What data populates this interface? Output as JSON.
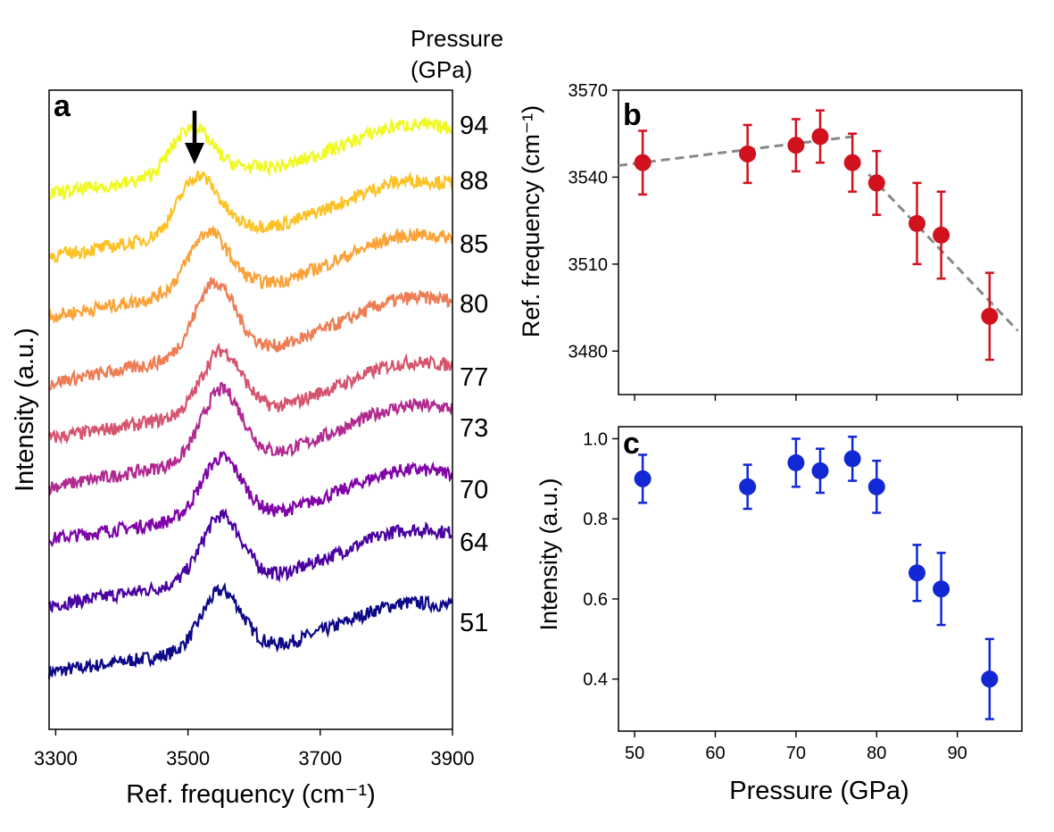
{
  "chart_data": [
    {
      "panel": "a",
      "type": "line",
      "panel_label": "a",
      "xlabel": "Ref. frequency (cm⁻¹)",
      "ylabel": "Intensity (a.u.)",
      "xlim": [
        3290,
        3900
      ],
      "x_ticks": [
        "3300",
        "3500",
        "3700",
        "3900"
      ],
      "pressure_header": [
        "Pressure",
        "(GPa)"
      ],
      "pressure_labels": [
        "94",
        "88",
        "85",
        "80",
        "77",
        "73",
        "70",
        "64",
        "51"
      ],
      "arrow_at": 3510,
      "series": [
        {
          "label": "51",
          "color": "#0d0887",
          "baseline": 0.0,
          "peak_center": 3550,
          "peak_height": 0.55,
          "rise": 0.55
        },
        {
          "label": "64",
          "color": "#4a02a0",
          "baseline": 0.64,
          "peak_center": 3550,
          "peak_height": 0.6,
          "rise": 0.62
        },
        {
          "label": "70",
          "color": "#8004a8",
          "baseline": 1.28,
          "peak_center": 3550,
          "peak_height": 0.55,
          "rise": 0.55
        },
        {
          "label": "73",
          "color": "#b12a90",
          "baseline": 1.78,
          "peak_center": 3550,
          "peak_height": 0.65,
          "rise": 0.68
        },
        {
          "label": "77",
          "color": "#d5546e",
          "baseline": 2.25,
          "peak_center": 3550,
          "peak_height": 0.58,
          "rise": 0.62
        },
        {
          "label": "80",
          "color": "#ec7d55",
          "baseline": 2.78,
          "peak_center": 3540,
          "peak_height": 0.68,
          "rise": 0.72
        },
        {
          "label": "85",
          "color": "#fba238",
          "baseline": 3.42,
          "peak_center": 3530,
          "peak_height": 0.55,
          "rise": 0.68
        },
        {
          "label": "88",
          "color": "#fcc226",
          "baseline": 4.0,
          "peak_center": 3515,
          "peak_height": 0.55,
          "rise": 0.62
        },
        {
          "label": "94",
          "color": "#f0f921",
          "baseline": 4.6,
          "peak_center": 3505,
          "peak_height": 0.45,
          "rise": 0.55
        }
      ]
    },
    {
      "panel": "b",
      "type": "scatter",
      "panel_label": "b",
      "xlabel": "",
      "ylabel": "Ref. frequency (cm⁻¹)",
      "xlim": [
        48,
        98
      ],
      "ylim": [
        3465,
        3570
      ],
      "y_ticks": [
        3480,
        3510,
        3540,
        3570
      ],
      "x_ticks": [
        50,
        60,
        70,
        80,
        90
      ],
      "color": "#d0121e",
      "points": [
        {
          "x": 51,
          "y": 3545,
          "err": 11
        },
        {
          "x": 64,
          "y": 3548,
          "err": 10
        },
        {
          "x": 70,
          "y": 3551,
          "err": 9
        },
        {
          "x": 73,
          "y": 3554,
          "err": 9
        },
        {
          "x": 77,
          "y": 3545,
          "err": 10
        },
        {
          "x": 80,
          "y": 3538,
          "err": 11
        },
        {
          "x": 85,
          "y": 3524,
          "err": 14
        },
        {
          "x": 88,
          "y": 3520,
          "err": 15
        },
        {
          "x": 94,
          "y": 3492,
          "err": 15
        }
      ],
      "fit_lines": [
        {
          "x": [
            48,
            77
          ],
          "y": [
            3544,
            3554
          ],
          "color": "#888888",
          "style": "dashed"
        },
        {
          "x": [
            79,
            97.5
          ],
          "y": [
            3541,
            3487
          ],
          "color": "#888888",
          "style": "dashed"
        }
      ]
    },
    {
      "panel": "c",
      "type": "scatter",
      "panel_label": "c",
      "xlabel": "Pressure (GPa)",
      "ylabel": "Intensity (a.u.)",
      "xlim": [
        48,
        98
      ],
      "ylim": [
        0.27,
        1.03
      ],
      "y_ticks": [
        "0.4",
        "0.6",
        "0.8",
        "1.0"
      ],
      "x_ticks": [
        "50",
        "60",
        "70",
        "80",
        "90"
      ],
      "color": "#1128d4",
      "points": [
        {
          "x": 51,
          "y": 0.9,
          "err": 0.06
        },
        {
          "x": 64,
          "y": 0.88,
          "err": 0.055
        },
        {
          "x": 70,
          "y": 0.94,
          "err": 0.06
        },
        {
          "x": 73,
          "y": 0.92,
          "err": 0.055
        },
        {
          "x": 77,
          "y": 0.95,
          "err": 0.055
        },
        {
          "x": 80,
          "y": 0.88,
          "err": 0.065
        },
        {
          "x": 85,
          "y": 0.665,
          "err": 0.07
        },
        {
          "x": 88,
          "y": 0.625,
          "err": 0.09
        },
        {
          "x": 94,
          "y": 0.4,
          "err": 0.1
        }
      ]
    }
  ]
}
